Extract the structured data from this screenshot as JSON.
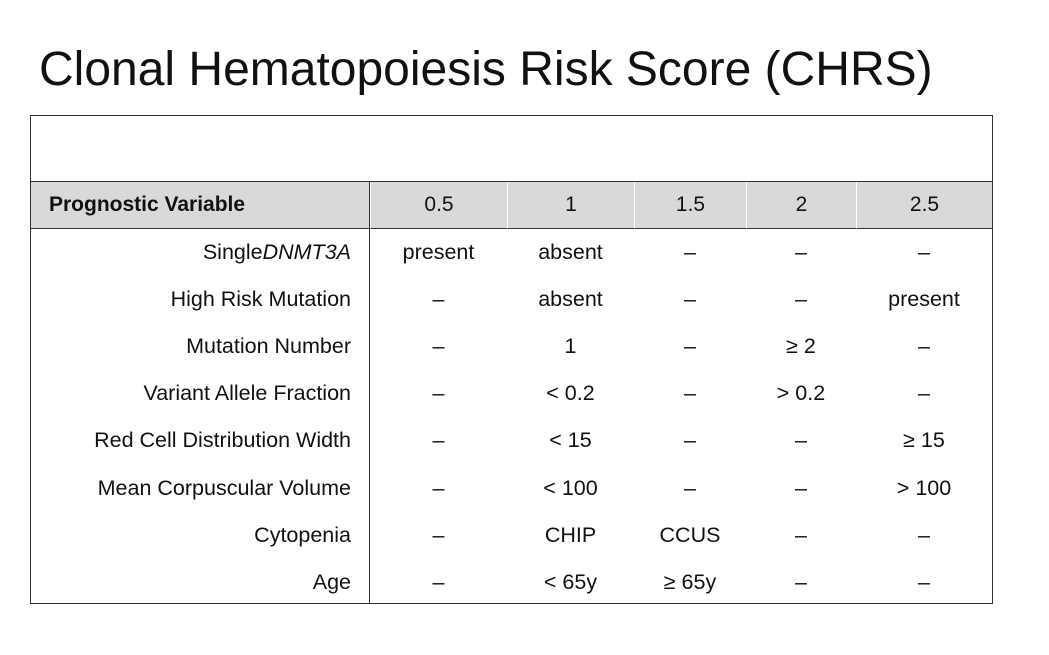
{
  "title": "Clonal Hematopoiesis Risk Score (CHRS)",
  "table": {
    "header": {
      "variable_label": "Prognostic Variable",
      "scores": [
        "0.5",
        "1",
        "1.5",
        "2",
        "2.5"
      ]
    },
    "rows": [
      {
        "label_prefix": "Single ",
        "label_italic": "DNMT3A",
        "values": [
          "present",
          "absent",
          "–",
          "–",
          "–"
        ]
      },
      {
        "label_prefix": "High Risk Mutation",
        "label_italic": "",
        "values": [
          "–",
          "absent",
          "–",
          "–",
          "present"
        ]
      },
      {
        "label_prefix": "Mutation Number",
        "label_italic": "",
        "values": [
          "–",
          "1",
          "–",
          "≥ 2",
          "–"
        ]
      },
      {
        "label_prefix": "Variant Allele Fraction",
        "label_italic": "",
        "values": [
          "–",
          "< 0.2",
          "–",
          "> 0.2",
          "–"
        ]
      },
      {
        "label_prefix": "Red Cell Distribution Width",
        "label_italic": "",
        "values": [
          "–",
          "< 15",
          "–",
          "–",
          "≥ 15"
        ]
      },
      {
        "label_prefix": "Mean Corpuscular Volume",
        "label_italic": "",
        "values": [
          "–",
          "< 100",
          "–",
          "–",
          "> 100"
        ]
      },
      {
        "label_prefix": "Cytopenia",
        "label_italic": "",
        "values": [
          "–",
          "CHIP",
          "CCUS",
          "–",
          "–"
        ]
      },
      {
        "label_prefix": "Age",
        "label_italic": "",
        "values": [
          "–",
          "< 65y",
          "≥ 65y",
          "–",
          "–"
        ]
      }
    ]
  },
  "colors": {
    "header_background": "#d9d9d9",
    "border": "#333333",
    "text": "#111111"
  }
}
